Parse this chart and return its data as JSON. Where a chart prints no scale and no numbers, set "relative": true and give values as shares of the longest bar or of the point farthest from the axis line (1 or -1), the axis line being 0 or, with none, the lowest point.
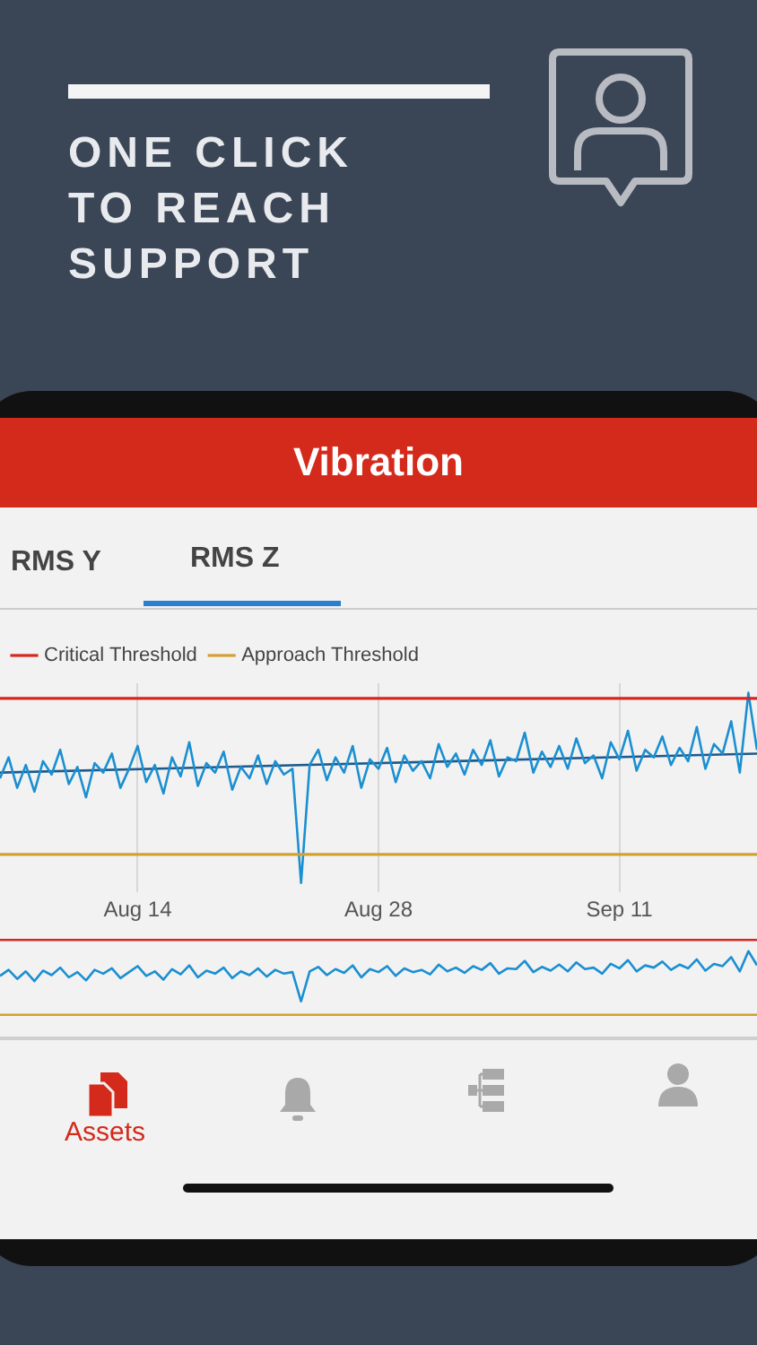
{
  "chart_data": [
    {
      "type": "line",
      "title": "ONE CLICK TO REACH SUPPORT",
      "subtitle": "Vibration",
      "annotations": [
        "RMS Y",
        "RMS Z",
        "Assets"
      ],
      "relative": true,
      "marker": "none",
      "grid": "x",
      "legend": "top left",
      "x": [
        "--08-06T00:00",
        "--08-06T12:00",
        "--08-07T00:00",
        "--08-07T12:00",
        "--08-08T00:00",
        "--08-08T12:00",
        "--08-09T00:00",
        "--08-09T12:00",
        "--08-10T00:00",
        "--08-10T12:00",
        "--08-11T00:00",
        "--08-11T12:00",
        "--08-12T00:00",
        "--08-12T12:00",
        "--08-13T00:00",
        "--08-13T12:00",
        "--08-14T00:00",
        "--08-14T12:00",
        "--08-15T00:00",
        "--08-15T12:00",
        "--08-16T00:00",
        "--08-16T12:00",
        "--08-17T00:00",
        "--08-17T12:00",
        "--08-18T00:00",
        "--08-18T12:00",
        "--08-19T00:00",
        "--08-19T12:00",
        "--08-20T00:00",
        "--08-20T12:00",
        "--08-21T00:00",
        "--08-21T12:00",
        "--08-22T00:00",
        "--08-22T12:00",
        "--08-23T00:00",
        "--08-23T12:00",
        "--08-24T00:00",
        "--08-24T12:00",
        "--08-25T00:00",
        "--08-25T12:00",
        "--08-26T00:00",
        "--08-26T12:00",
        "--08-27T00:00",
        "--08-27T12:00",
        "--08-28T00:00",
        "--08-28T12:00",
        "--08-29T00:00",
        "--08-29T12:00",
        "--08-30T00:00",
        "--08-30T12:00",
        "--08-31T00:00",
        "--08-31T12:00",
        "--09-01T00:00",
        "--09-01T12:00",
        "--09-02T00:00",
        "--09-02T12:00",
        "--09-03T00:00",
        "--09-03T12:00",
        "--09-04T00:00",
        "--09-04T12:00",
        "--09-05T00:00",
        "--09-05T12:00",
        "--09-06T00:00",
        "--09-06T12:00",
        "--09-07T00:00",
        "--09-07T12:00",
        "--09-08T00:00",
        "--09-08T12:00",
        "--09-09T00:00",
        "--09-09T12:00",
        "--09-10T00:00",
        "--09-10T12:00",
        "--09-11T00:00",
        "--09-11T12:00",
        "--09-12T00:00",
        "--09-12T12:00",
        "--09-13T00:00",
        "--09-13T12:00",
        "--09-14T00:00",
        "--09-14T12:00",
        "--09-15T00:00",
        "--09-15T12:00",
        "--09-16T00:00",
        "--09-16T12:00",
        "--09-17T00:00",
        "--09-17T12:00",
        "--09-18T00:00",
        "--09-18T12:00",
        "--09-19T00:00"
      ],
      "xlim": [
        "--08-06",
        "--09-19"
      ],
      "xticks": [
        {
          "value": "--08-14",
          "label": "Aug 14"
        },
        {
          "value": "--08-28",
          "label": "Aug 28"
        },
        {
          "value": "--09-11",
          "label": "Sep 11"
        }
      ],
      "series": [
        {
          "name": "Critical Threshold",
          "color": "#d7261e",
          "x": [
            "--08-06",
            "--09-19"
          ],
          "values": [
            0.97,
            0.97
          ]
        },
        {
          "name": "Approach Threshold",
          "color": "#d4a030",
          "x": [
            "--08-06",
            "--09-19"
          ],
          "values": [
            0.15,
            0.15
          ]
        },
        {
          "color": "#1a8fd1",
          "values": [
            0.55,
            0.66,
            0.5,
            0.62,
            0.48,
            0.64,
            0.57,
            0.7,
            0.52,
            0.61,
            0.45,
            0.63,
            0.58,
            0.68,
            0.5,
            0.6,
            0.72,
            0.53,
            0.62,
            0.47,
            0.66,
            0.56,
            0.74,
            0.51,
            0.63,
            0.58,
            0.69,
            0.49,
            0.61,
            0.55,
            0.67,
            0.52,
            0.64,
            0.57,
            0.6,
            0.0,
            0.62,
            0.7,
            0.54,
            0.66,
            0.58,
            0.72,
            0.5,
            0.65,
            0.6,
            0.71,
            0.53,
            0.67,
            0.59,
            0.64,
            0.55,
            0.73,
            0.61,
            0.68,
            0.57,
            0.7,
            0.62,
            0.75,
            0.56,
            0.66,
            0.64,
            0.79,
            0.58,
            0.69,
            0.61,
            0.72,
            0.6,
            0.76,
            0.63,
            0.67,
            0.55,
            0.74,
            0.65,
            0.8,
            0.59,
            0.7,
            0.66,
            0.77,
            0.62,
            0.71,
            0.64,
            0.82,
            0.6,
            0.73,
            0.68,
            0.85,
            0.58,
            1.0,
            0.7
          ]
        },
        {
          "color": "#1f5a8a",
          "x": [
            "--08-06",
            "--09-19"
          ],
          "values": [
            0.58,
            0.68
          ]
        }
      ]
    },
    {
      "type": "line",
      "relative": true,
      "marker": "none",
      "x": [
        "--08-06T00:00",
        "--08-06T12:00",
        "--08-07T00:00",
        "--08-07T12:00",
        "--08-08T00:00",
        "--08-08T12:00",
        "--08-09T00:00",
        "--08-09T12:00",
        "--08-10T00:00",
        "--08-10T12:00",
        "--08-11T00:00",
        "--08-11T12:00",
        "--08-12T00:00",
        "--08-12T12:00",
        "--08-13T00:00",
        "--08-13T12:00",
        "--08-14T00:00",
        "--08-14T12:00",
        "--08-15T00:00",
        "--08-15T12:00",
        "--08-16T00:00",
        "--08-16T12:00",
        "--08-17T00:00",
        "--08-17T12:00",
        "--08-18T00:00",
        "--08-18T12:00",
        "--08-19T00:00",
        "--08-19T12:00",
        "--08-20T00:00",
        "--08-20T12:00",
        "--08-21T00:00",
        "--08-21T12:00",
        "--08-22T00:00",
        "--08-22T12:00",
        "--08-23T00:00",
        "--08-23T12:00",
        "--08-24T00:00",
        "--08-24T12:00",
        "--08-25T00:00",
        "--08-25T12:00",
        "--08-26T00:00",
        "--08-26T12:00",
        "--08-27T00:00",
        "--08-27T12:00",
        "--08-28T00:00",
        "--08-28T12:00",
        "--08-29T00:00",
        "--08-29T12:00",
        "--08-30T00:00",
        "--08-30T12:00",
        "--08-31T00:00",
        "--08-31T12:00",
        "--09-01T00:00",
        "--09-01T12:00",
        "--09-02T00:00",
        "--09-02T12:00",
        "--09-03T00:00",
        "--09-03T12:00",
        "--09-04T00:00",
        "--09-04T12:00",
        "--09-05T00:00",
        "--09-05T12:00",
        "--09-06T00:00",
        "--09-06T12:00",
        "--09-07T00:00",
        "--09-07T12:00",
        "--09-08T00:00",
        "--09-08T12:00",
        "--09-09T00:00",
        "--09-09T12:00",
        "--09-10T00:00",
        "--09-10T12:00",
        "--09-11T00:00",
        "--09-11T12:00",
        "--09-12T00:00",
        "--09-12T12:00",
        "--09-13T00:00",
        "--09-13T12:00",
        "--09-14T00:00",
        "--09-14T12:00",
        "--09-15T00:00",
        "--09-15T12:00",
        "--09-16T00:00",
        "--09-16T12:00",
        "--09-17T00:00",
        "--09-17T12:00",
        "--09-18T00:00",
        "--09-18T12:00",
        "--09-19T00:00"
      ],
      "xlim": [
        "--08-06",
        "--09-19"
      ],
      "series": [
        {
          "color": "#d7261e",
          "x": [
            "--08-06",
            "--09-19"
          ],
          "values": [
            1.0,
            1.0
          ]
        },
        {
          "color": "#d4a030",
          "x": [
            "--08-06",
            "--09-19"
          ],
          "values": [
            0.0,
            0.0
          ]
        },
        {
          "color": "#1a8fd1",
          "values": [
            0.52,
            0.6,
            0.48,
            0.58,
            0.45,
            0.59,
            0.53,
            0.63,
            0.5,
            0.57,
            0.46,
            0.6,
            0.55,
            0.62,
            0.49,
            0.57,
            0.65,
            0.52,
            0.58,
            0.47,
            0.61,
            0.54,
            0.66,
            0.5,
            0.59,
            0.55,
            0.63,
            0.49,
            0.58,
            0.53,
            0.62,
            0.51,
            0.6,
            0.55,
            0.57,
            0.18,
            0.58,
            0.64,
            0.53,
            0.61,
            0.56,
            0.66,
            0.5,
            0.61,
            0.57,
            0.65,
            0.52,
            0.62,
            0.57,
            0.6,
            0.54,
            0.67,
            0.58,
            0.63,
            0.56,
            0.65,
            0.6,
            0.69,
            0.55,
            0.62,
            0.61,
            0.72,
            0.57,
            0.64,
            0.59,
            0.67,
            0.58,
            0.7,
            0.61,
            0.63,
            0.55,
            0.68,
            0.62,
            0.73,
            0.58,
            0.66,
            0.63,
            0.71,
            0.6,
            0.67,
            0.62,
            0.74,
            0.59,
            0.68,
            0.65,
            0.77,
            0.58,
            0.85,
            0.66
          ]
        }
      ]
    }
  ]
}
